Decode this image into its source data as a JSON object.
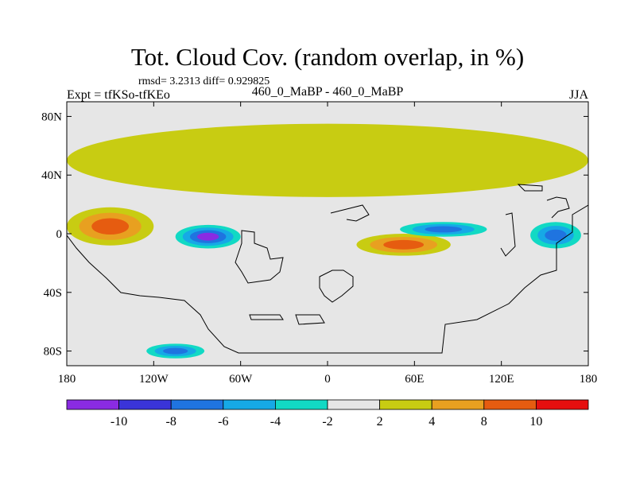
{
  "chart_data": {
    "type": "heatmap",
    "title": "Tot. Cloud Cov. (random overlap, in %)",
    "subtitle_stats": "rmsd= 3.2313 diff= 0.929825",
    "experiment_label": "Expt = tfKSo-tfKEo",
    "center_label": "460_0_MaBP - 460_0_MaBP",
    "season_label": "JJA",
    "x_axis": {
      "range": [
        -180,
        180
      ],
      "ticks": [
        -180,
        -120,
        -60,
        0,
        60,
        120,
        180
      ],
      "tick_labels": [
        "180",
        "120W",
        "60W",
        "0",
        "60E",
        "120E",
        "180"
      ]
    },
    "y_axis": {
      "range": [
        -90,
        90
      ],
      "ticks": [
        80,
        40,
        0,
        -40,
        -80
      ],
      "tick_labels": [
        "80N",
        "40N",
        "0",
        "40S",
        "80S"
      ]
    },
    "colorbar": {
      "orientation": "horizontal",
      "levels": [
        -10,
        -8,
        -6,
        -4,
        -2,
        2,
        4,
        8,
        10
      ],
      "level_labels": [
        "-10",
        "-8",
        "-6",
        "-4",
        "-2",
        "2",
        "4",
        "8",
        "10"
      ],
      "colors": [
        "#8a2be2",
        "#3a34d8",
        "#1f74e0",
        "#16a9e6",
        "#12d9c4",
        "#e6e6e6",
        "#c8cc12",
        "#e8a020",
        "#e65c10",
        "#e60f0f"
      ]
    },
    "features": [
      {
        "name": "tropical positive band west",
        "lat": [
          -8,
          18
        ],
        "lon": [
          -180,
          -120
        ],
        "value": 9
      },
      {
        "name": "tropical negative minimum",
        "lat": [
          -10,
          6
        ],
        "lon": [
          -105,
          -60
        ],
        "value": -11
      },
      {
        "name": "tropical positive band east",
        "lat": [
          -15,
          0
        ],
        "lon": [
          20,
          85
        ],
        "value": 9
      },
      {
        "name": "negative band near 60E",
        "lat": [
          -2,
          8
        ],
        "lon": [
          50,
          110
        ],
        "value": -8
      },
      {
        "name": "western pacific negative",
        "lat": [
          -10,
          8
        ],
        "lon": [
          140,
          175
        ],
        "value": -10
      },
      {
        "name": "south polar negative patch",
        "lat": [
          -85,
          -75
        ],
        "lon": [
          -125,
          -85
        ],
        "value": -9
      },
      {
        "name": "northern midlatitude positive band",
        "lat": [
          25,
          75
        ],
        "lon": [
          -180,
          180
        ],
        "value": 3
      }
    ],
    "grid": false,
    "legend_placement": "bottom"
  }
}
